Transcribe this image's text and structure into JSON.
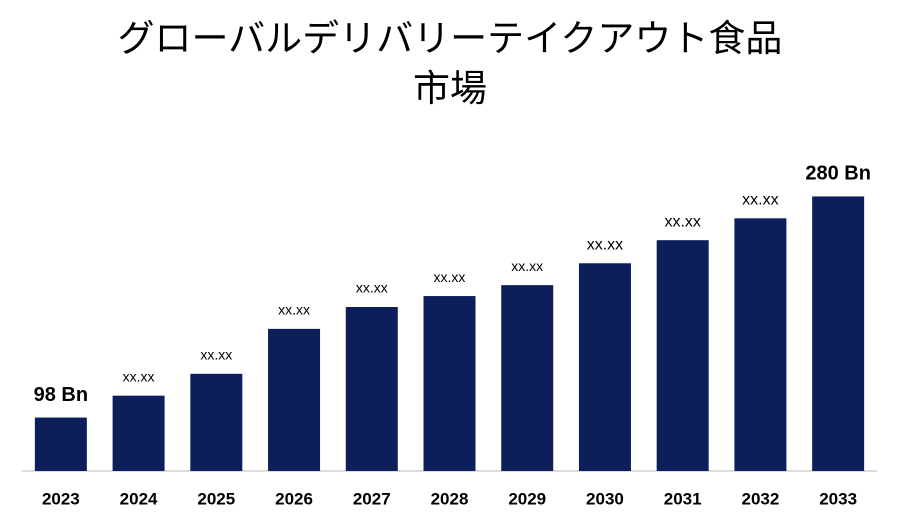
{
  "chart_data": {
    "type": "bar",
    "title": "グローバルデリバリーテイクアウト食品市場",
    "categories": [
      "2023",
      "2024",
      "2025",
      "2026",
      "2027",
      "2028",
      "2029",
      "2030",
      "2031",
      "2032",
      "2033"
    ],
    "values": [
      98,
      116,
      134,
      171,
      189,
      198,
      207,
      225,
      244,
      262,
      280
    ],
    "value_labels": [
      "98 Bn",
      "xx.xx",
      "xx.xx",
      "xx.xx",
      "xx.xx",
      "xx.xx",
      "xx.xx",
      "xx.xx",
      "xx.xx",
      "xx.xx",
      "280 Bn"
    ],
    "color": "#0c1f5b",
    "ylim": [
      54,
      310
    ]
  }
}
